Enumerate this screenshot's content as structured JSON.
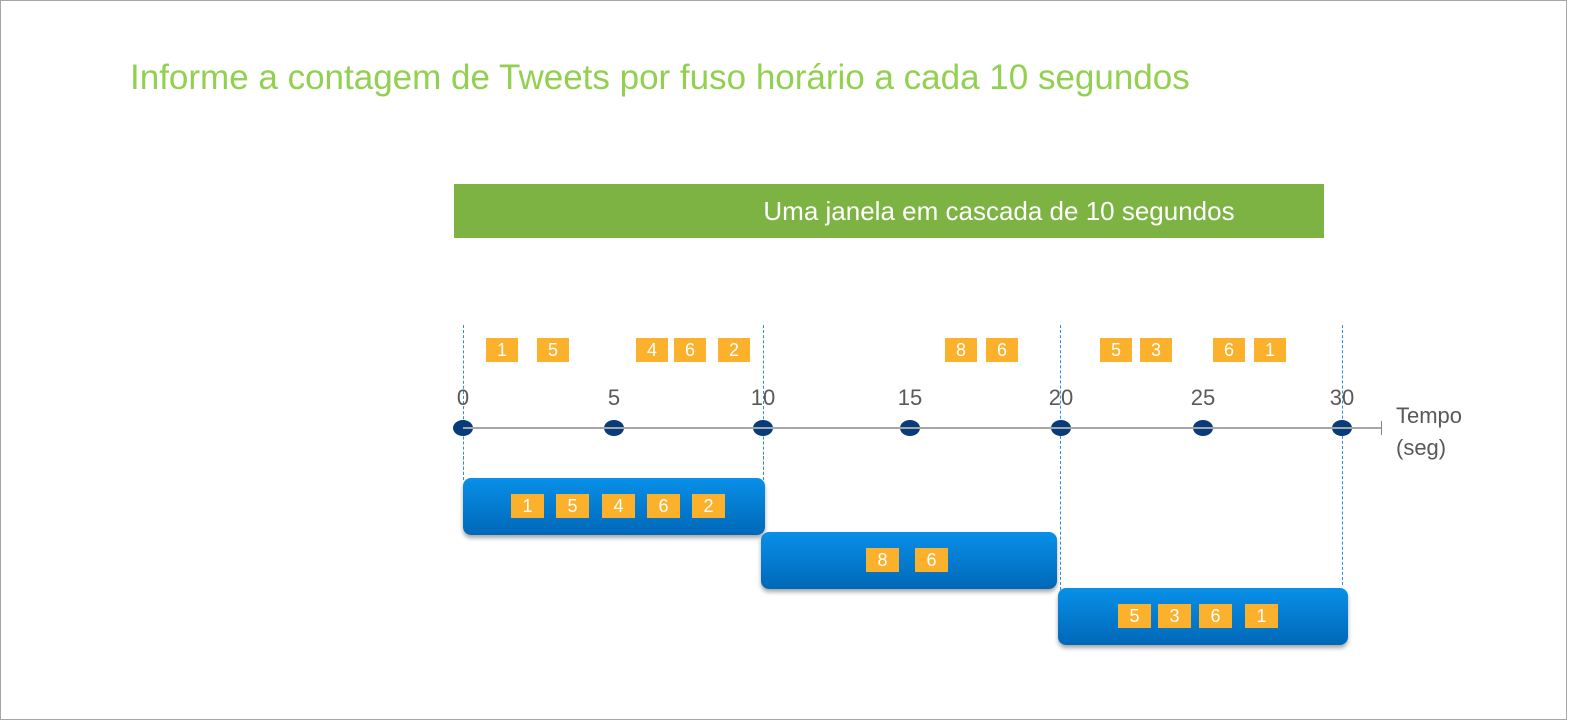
{
  "title": "Informe a contagem de Tweets por fuso horário a cada 10 segundos",
  "banner": "Uma janela em cascada de 10 segundos",
  "axis": {
    "ticks": [
      "0",
      "5",
      "10",
      "15",
      "20",
      "25",
      "30"
    ],
    "unit_line1": "Tempo",
    "unit_line2": "(seg)"
  },
  "events": [
    "1",
    "5",
    "4",
    "6",
    "2",
    "8",
    "6",
    "5",
    "3",
    "6",
    "1"
  ],
  "windows": [
    {
      "range": [
        0,
        10
      ],
      "values": [
        "1",
        "5",
        "4",
        "6",
        "2"
      ]
    },
    {
      "range": [
        10,
        20
      ],
      "values": [
        "8",
        "6"
      ]
    },
    {
      "range": [
        20,
        30
      ],
      "values": [
        "5",
        "3",
        "6",
        "1"
      ]
    }
  ],
  "colors": {
    "title": "#92d050",
    "banner": "#7cb342",
    "event": "#fbb12b",
    "window": "#0078d4",
    "dot": "#073b79"
  }
}
